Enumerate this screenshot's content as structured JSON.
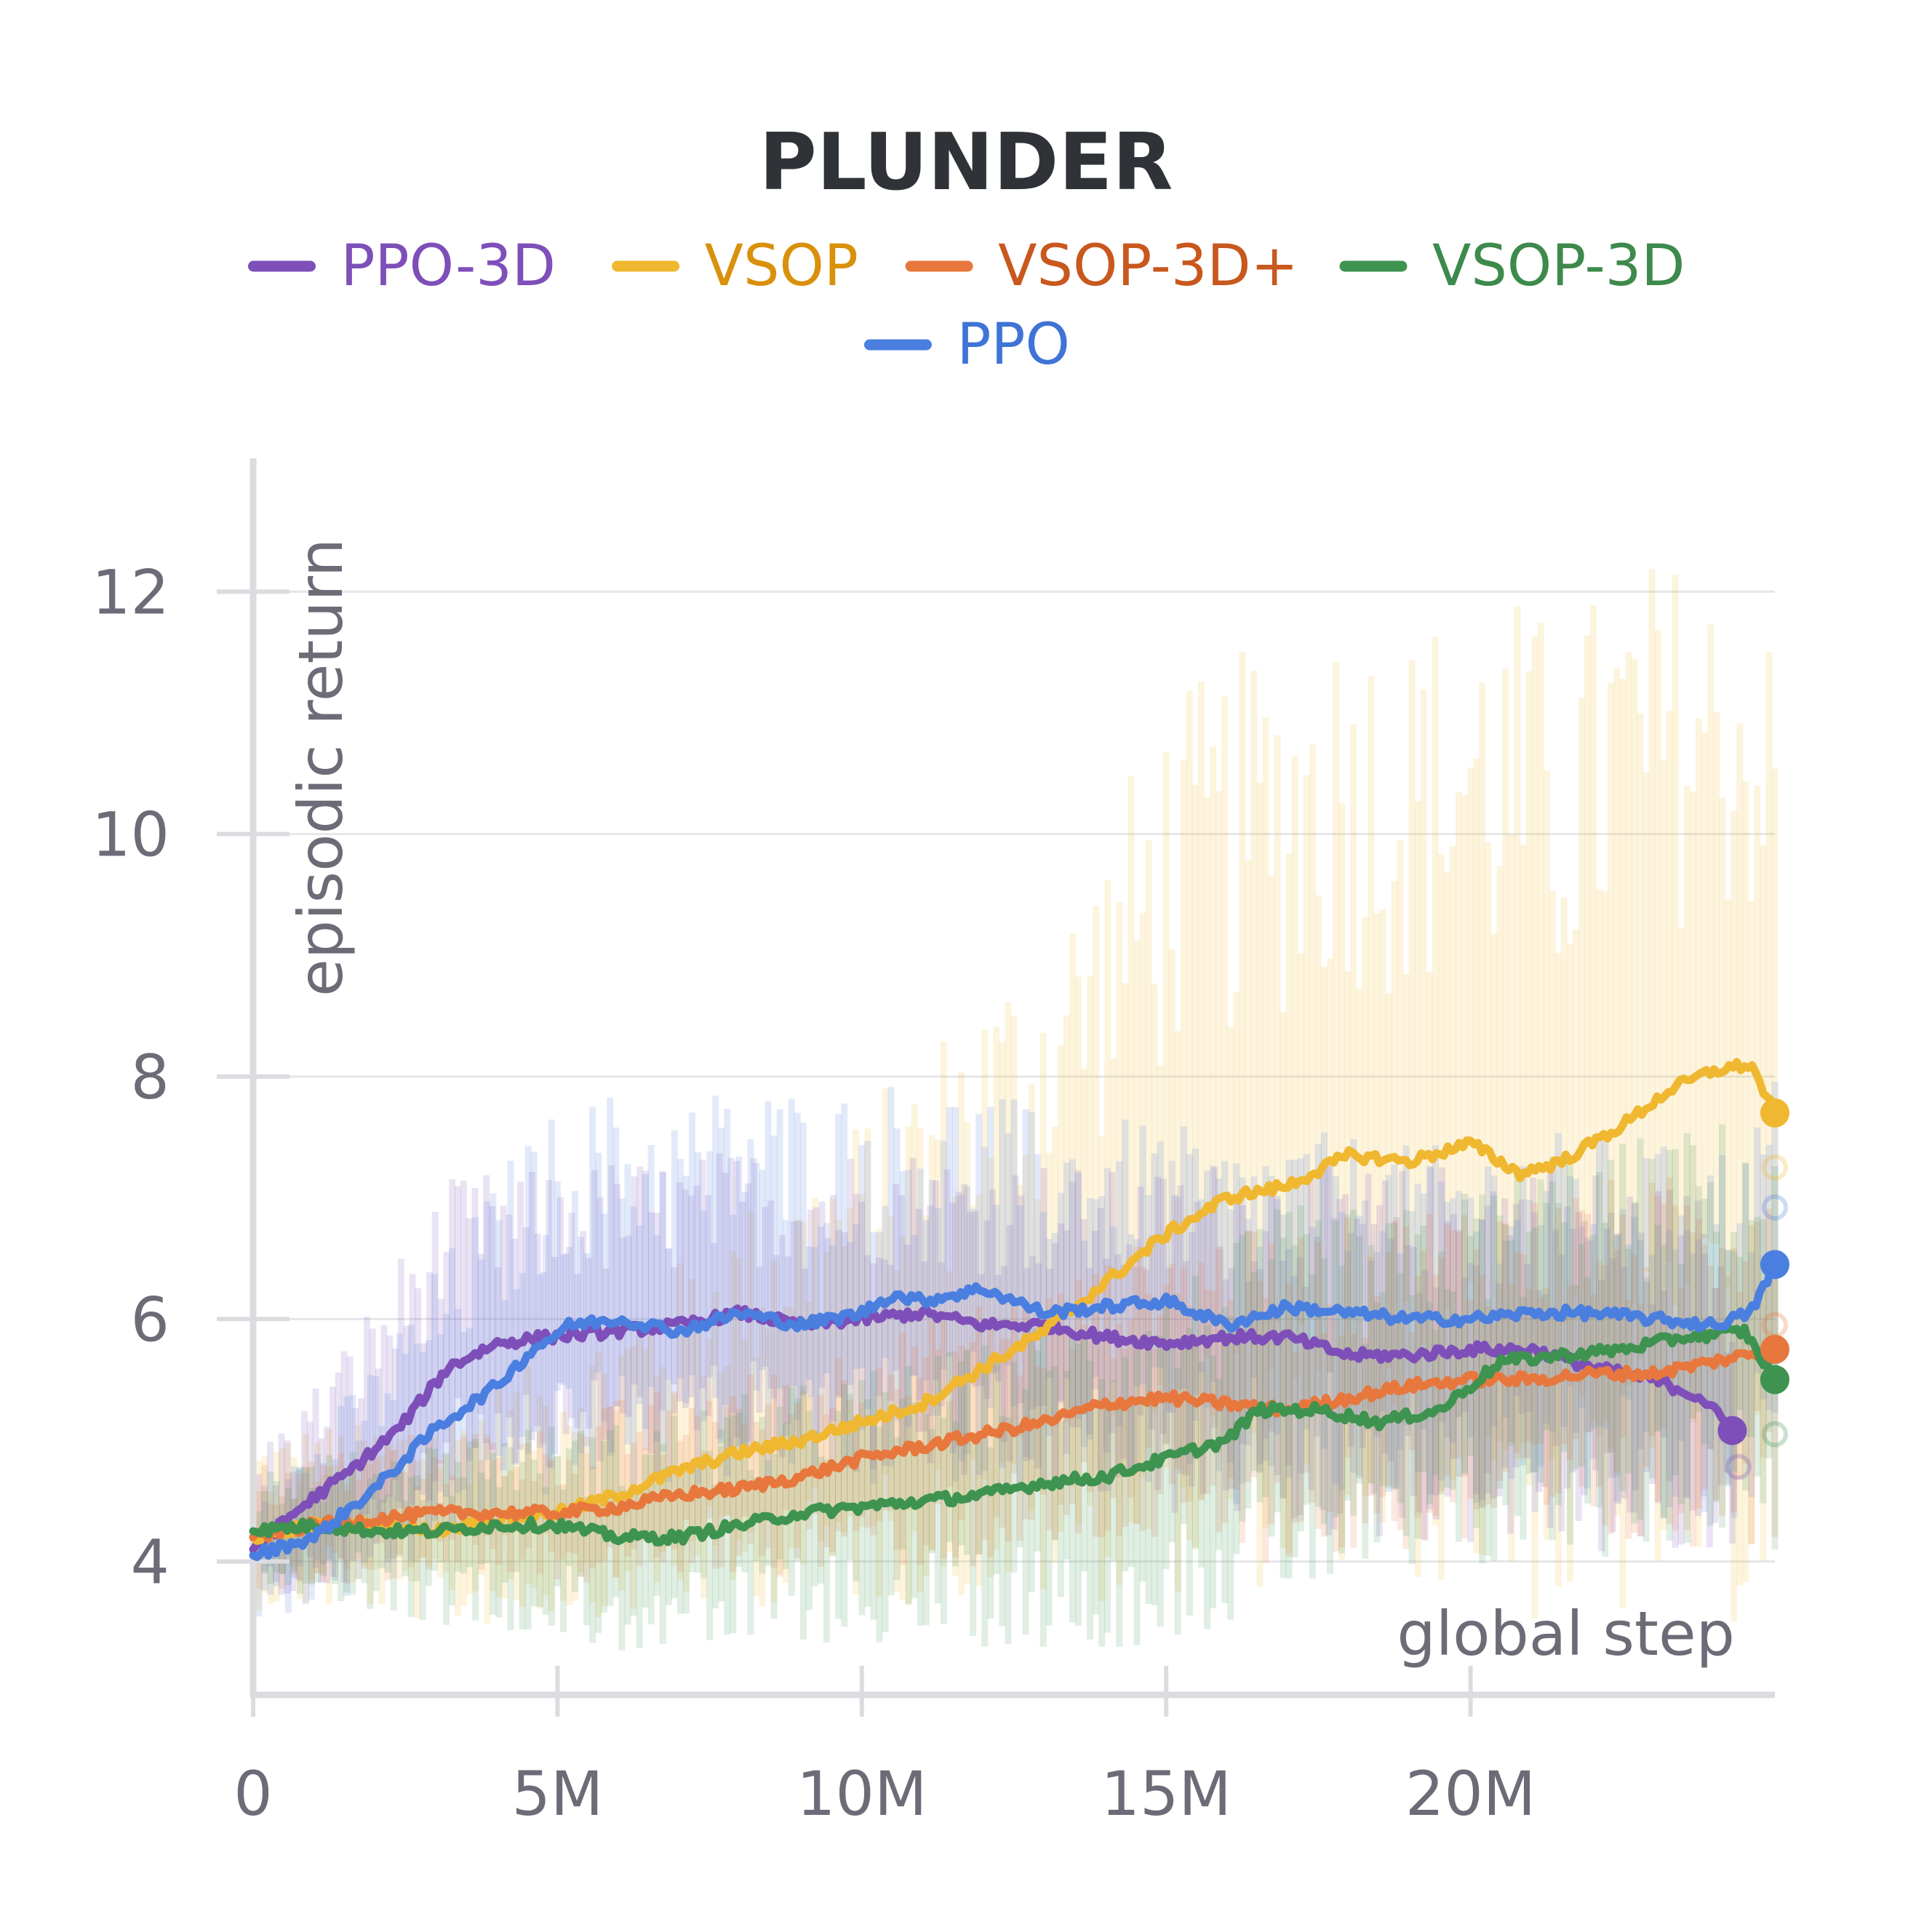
{
  "chart_data": {
    "type": "line",
    "title": "PLUNDER",
    "xlabel": "global step",
    "ylabel": "episodic return",
    "xlim": [
      0,
      25000000
    ],
    "ylim": [
      2.9,
      13.1
    ],
    "x_ticks": [
      0,
      5000000,
      10000000,
      15000000,
      20000000
    ],
    "x_tick_labels": [
      "0",
      "5M",
      "10M",
      "15M",
      "20M"
    ],
    "y_ticks": [
      4,
      6,
      8,
      10,
      12
    ],
    "y_tick_labels": [
      "4",
      "6",
      "8",
      "10",
      "12"
    ],
    "grid": true,
    "legend_position": "top",
    "series": [
      {
        "name": "PPO-3D",
        "color": "#7e4fb8",
        "text_color": "#7e4fb8",
        "x": [
          0,
          800000,
          1600000,
          2400000,
          3200000,
          4000000,
          4800000,
          6000000,
          7000000,
          8000000,
          9000000,
          10000000,
          11000000,
          12000000,
          13000000,
          14000000,
          15000000,
          16000000,
          17000000,
          18000000,
          19000000,
          20000000,
          21000000,
          22000000,
          23000000,
          23800000,
          24300000
        ],
        "values": [
          4.1,
          4.45,
          4.75,
          5.1,
          5.6,
          5.8,
          5.85,
          5.9,
          5.95,
          6.05,
          5.95,
          6.0,
          6.05,
          5.95,
          5.95,
          5.85,
          5.8,
          5.85,
          5.85,
          5.7,
          5.7,
          5.75,
          5.75,
          5.6,
          5.5,
          5.35,
          5.08
        ],
        "band_low": [
          3.7,
          3.8,
          4.0,
          4.4,
          4.8,
          4.9,
          4.9,
          4.9,
          4.9,
          5.0,
          4.9,
          4.9,
          4.9,
          4.8,
          4.8,
          4.7,
          4.6,
          4.6,
          4.5,
          4.4,
          4.4,
          4.4,
          4.4,
          4.3,
          4.2,
          4.2,
          4.2
        ],
        "band_high": [
          4.8,
          5.2,
          5.7,
          6.3,
          6.9,
          7.0,
          7.0,
          7.1,
          7.1,
          7.2,
          7.2,
          7.2,
          7.2,
          7.1,
          7.1,
          7.0,
          7.0,
          7.1,
          7.1,
          7.0,
          7.0,
          7.1,
          7.1,
          7.0,
          6.9,
          6.8,
          6.4
        ],
        "end_point": [
          24300000,
          5.08
        ],
        "ghost_point": [
          24400000,
          4.78
        ]
      },
      {
        "name": "VSOP",
        "color": "#f0b830",
        "text_color": "#d9910c",
        "x": [
          0,
          1000000,
          2000000,
          3000000,
          4000000,
          5000000,
          6000000,
          7000000,
          8000000,
          9000000,
          10000000,
          11000000,
          12000000,
          13000000,
          14000000,
          15000000,
          16000000,
          17000000,
          18000000,
          19000000,
          20000000,
          20800000,
          21500000,
          22500000,
          23300000,
          24000000,
          24600000,
          25000000
        ],
        "values": [
          4.2,
          4.3,
          4.3,
          4.25,
          4.35,
          4.4,
          4.55,
          4.75,
          4.9,
          5.0,
          5.15,
          5.3,
          5.6,
          5.9,
          6.3,
          6.7,
          7.0,
          7.1,
          7.35,
          7.3,
          7.45,
          7.2,
          7.3,
          7.6,
          7.9,
          8.05,
          8.1,
          7.7
        ],
        "band_low": [
          3.7,
          3.7,
          3.7,
          3.6,
          3.6,
          3.7,
          3.7,
          3.8,
          3.8,
          3.9,
          3.9,
          3.9,
          4.0,
          4.0,
          4.1,
          4.2,
          4.3,
          4.3,
          4.4,
          4.3,
          4.4,
          4.1,
          4.0,
          4.1,
          4.2,
          4.2,
          4.2,
          4.0
        ],
        "band_high": [
          4.9,
          5.0,
          5.0,
          5.1,
          5.3,
          5.5,
          5.8,
          6.2,
          6.6,
          6.9,
          7.3,
          7.8,
          8.3,
          8.7,
          9.5,
          10.4,
          10.7,
          11.0,
          11.2,
          11.0,
          11.3,
          11.2,
          11.0,
          11.5,
          11.6,
          11.5,
          11.4,
          11.0
        ],
        "end_point": [
          25000000,
          7.7
        ],
        "ghost_point": [
          25000000,
          7.25
        ]
      },
      {
        "name": "VSOP-3D+",
        "color": "#e8773d",
        "text_color": "#c8581e",
        "x": [
          0,
          1000000,
          2000000,
          3000000,
          4000000,
          5000000,
          6000000,
          7000000,
          8000000,
          9000000,
          10000000,
          11000000,
          12000000,
          13000000,
          14000000,
          15000000,
          16000000,
          17000000,
          18000000,
          19000000,
          20000000,
          21000000,
          22000000,
          23000000,
          24000000,
          25000000
        ],
        "values": [
          4.2,
          4.3,
          4.35,
          4.4,
          4.4,
          4.4,
          4.45,
          4.55,
          4.6,
          4.7,
          4.85,
          4.95,
          5.05,
          5.15,
          5.3,
          5.35,
          5.3,
          5.25,
          5.35,
          5.45,
          5.5,
          5.5,
          5.55,
          5.55,
          5.65,
          5.75
        ],
        "band_low": [
          3.8,
          3.9,
          3.9,
          4.0,
          4.0,
          3.9,
          3.9,
          4.0,
          4.0,
          4.0,
          4.1,
          4.1,
          4.1,
          4.2,
          4.3,
          4.3,
          4.2,
          4.2,
          4.2,
          4.3,
          4.3,
          4.3,
          4.3,
          4.3,
          4.4,
          4.4
        ],
        "band_high": [
          4.7,
          4.8,
          4.9,
          5.0,
          5.0,
          5.0,
          5.2,
          5.3,
          5.4,
          5.5,
          5.7,
          5.8,
          6.0,
          6.1,
          6.3,
          6.5,
          6.5,
          6.5,
          6.6,
          6.7,
          6.8,
          6.8,
          6.9,
          6.9,
          7.0,
          7.1
        ],
        "end_point": [
          25000000,
          5.75
        ],
        "ghost_point": [
          25000000,
          5.95
        ]
      },
      {
        "name": "VSOP-3D",
        "color": "#3e9350",
        "text_color": "#3d8a4c",
        "x": [
          0,
          1000000,
          2000000,
          3000000,
          4000000,
          5000000,
          6000000,
          7000000,
          8000000,
          9000000,
          10000000,
          11000000,
          12000000,
          13000000,
          14000000,
          15000000,
          16000000,
          16500000,
          17500000,
          18500000,
          19500000,
          20500000,
          21500000,
          22500000,
          23500000,
          24500000,
          25000000
        ],
        "values": [
          4.25,
          4.3,
          4.25,
          4.25,
          4.3,
          4.3,
          4.2,
          4.2,
          4.3,
          4.4,
          4.45,
          4.5,
          4.55,
          4.65,
          4.7,
          4.85,
          5.0,
          5.25,
          5.25,
          5.15,
          5.25,
          5.65,
          5.7,
          5.75,
          5.85,
          5.9,
          5.5
        ],
        "band_low": [
          3.9,
          3.8,
          3.7,
          3.6,
          3.6,
          3.5,
          3.4,
          3.4,
          3.4,
          3.5,
          3.5,
          3.5,
          3.5,
          3.5,
          3.5,
          3.6,
          3.7,
          3.9,
          4.0,
          4.0,
          4.0,
          4.2,
          4.3,
          4.3,
          4.4,
          4.5,
          4.3
        ],
        "band_high": [
          4.7,
          4.8,
          4.8,
          4.9,
          5.0,
          5.0,
          5.0,
          5.1,
          5.2,
          5.3,
          5.4,
          5.5,
          5.6,
          5.8,
          5.9,
          6.1,
          6.3,
          6.6,
          6.7,
          6.6,
          6.7,
          7.0,
          7.1,
          7.2,
          7.3,
          7.4,
          7.1
        ],
        "end_point": [
          25000000,
          5.5
        ],
        "ghost_point": [
          25000000,
          5.05
        ]
      },
      {
        "name": "PPO",
        "color": "#4a7fe0",
        "text_color": "#3f74d6",
        "x": [
          0,
          1000000,
          2000000,
          3000000,
          4000000,
          4600000,
          5200000,
          6000000,
          7000000,
          8000000,
          9000000,
          10000000,
          10500000,
          11000000,
          12000000,
          13000000,
          14000000,
          15000000,
          16000000,
          17000000,
          18000000,
          19000000,
          20000000,
          21000000,
          22000000,
          23000000,
          24000000,
          24600000,
          25000000
        ],
        "values": [
          4.05,
          4.2,
          4.6,
          5.1,
          5.45,
          5.75,
          5.95,
          6.0,
          5.9,
          6.05,
          5.95,
          6.05,
          6.2,
          6.15,
          6.25,
          6.05,
          6.1,
          6.15,
          5.95,
          6.1,
          6.05,
          6.0,
          6.0,
          6.05,
          6.05,
          6.0,
          5.95,
          6.05,
          6.45
        ],
        "band_low": [
          3.6,
          3.7,
          3.9,
          4.2,
          4.5,
          4.7,
          4.8,
          4.8,
          4.8,
          4.9,
          4.8,
          4.8,
          4.9,
          4.9,
          4.9,
          4.8,
          4.8,
          4.8,
          4.6,
          4.7,
          4.7,
          4.6,
          4.6,
          4.6,
          4.6,
          4.5,
          4.5,
          4.5,
          4.8
        ],
        "band_high": [
          4.6,
          4.9,
          5.5,
          6.2,
          6.9,
          7.3,
          7.5,
          7.6,
          7.5,
          7.7,
          7.6,
          7.6,
          7.7,
          7.6,
          7.7,
          7.4,
          7.4,
          7.4,
          7.2,
          7.3,
          7.3,
          7.2,
          7.2,
          7.3,
          7.3,
          7.2,
          7.2,
          7.3,
          7.8
        ],
        "end_point": [
          25000000,
          6.45
        ],
        "ghost_point": [
          25000000,
          6.92
        ]
      }
    ]
  }
}
